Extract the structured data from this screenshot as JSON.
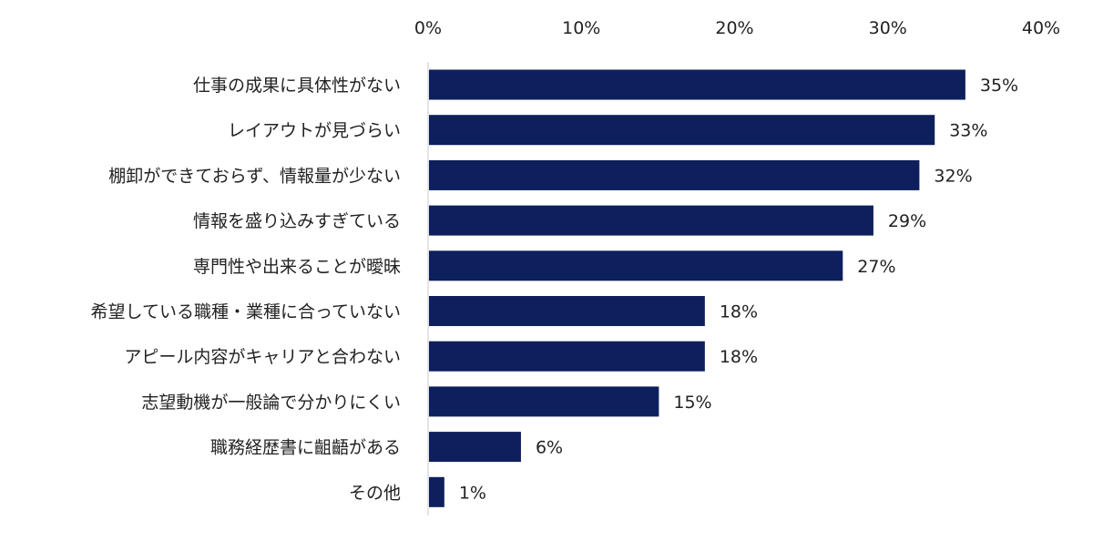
{
  "chart_data": {
    "type": "bar",
    "orientation": "horizontal",
    "categories": [
      "仕事の成果に具体性がない",
      "レイアウトが見づらい",
      "棚卸ができておらず、情報量が少ない",
      "情報を盛り込みすぎている",
      "専門性や出来ることが曖昧",
      "希望している職種・業種に合っていない",
      "アピール内容がキャリアと合わない",
      "志望動機が一般論で分かりにくい",
      "職務経歴書に齟齬がある",
      "その他"
    ],
    "values": [
      35,
      33,
      32,
      29,
      27,
      18,
      18,
      15,
      6,
      1
    ],
    "value_labels": [
      "35%",
      "33%",
      "32%",
      "29%",
      "27%",
      "18%",
      "18%",
      "15%",
      "6%",
      "1%"
    ],
    "xlim": [
      0,
      40
    ],
    "xticks": [
      0,
      10,
      20,
      30,
      40
    ],
    "xtick_labels": [
      "0%",
      "10%",
      "20%",
      "30%",
      "40%"
    ],
    "axis_position": "top",
    "grid": false,
    "legend": "none",
    "bar_color": "#0d1f5c",
    "axis_color": "#c8c8c8"
  }
}
